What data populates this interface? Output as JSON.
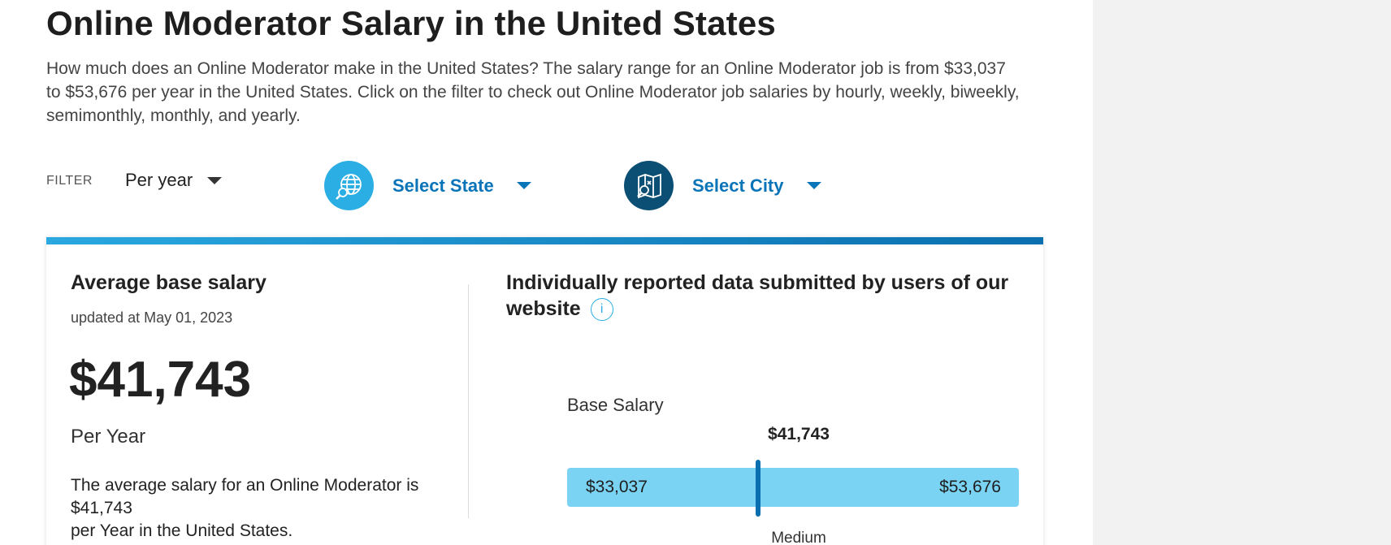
{
  "page": {
    "title": "Online Moderator Salary in the United States",
    "intro": "How much does an Online Moderator make in the United States? The salary range for an Online Moderator job is from $33,037 to $53,676 per year in the United States. Click on the filter to check out Online Moderator job salaries by hourly, weekly, biweekly, semimonthly, monthly, and yearly."
  },
  "filter": {
    "label": "FILTER",
    "period": "Per year",
    "state": {
      "label": "Select State",
      "icon": "globe-search-icon",
      "color": "#2aaee3"
    },
    "city": {
      "label": "Select City",
      "icon": "map-search-icon",
      "color": "#0c4f74"
    }
  },
  "average": {
    "heading": "Average base salary",
    "updated": "updated at May 01, 2023",
    "value": "$41,743",
    "unit": "Per Year",
    "desc_line1": "The average salary for an Online Moderator is $41,743",
    "desc_line2": "per Year in the United States."
  },
  "distribution": {
    "heading": "Individually reported data submitted by users of our website",
    "base_label": "Base Salary",
    "median": "$41,743",
    "low": "$33,037",
    "high": "$53,676",
    "median_label": "Medium",
    "low_num": 33037,
    "high_num": 53676,
    "median_num": 41743
  },
  "colors": {
    "accent": "#0a74b8",
    "bar": "#7bd3f3",
    "marker": "#0a6fae"
  }
}
